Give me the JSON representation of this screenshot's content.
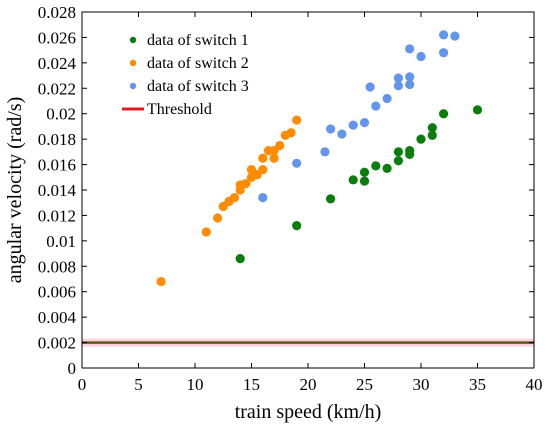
{
  "chart_data": {
    "type": "scatter",
    "xlabel": "train speed (km/h)",
    "ylabel": "angular velocity (rad/s)",
    "xlim": [
      0,
      40
    ],
    "ylim": [
      0,
      0.028
    ],
    "xticks": [
      0,
      5,
      10,
      15,
      20,
      25,
      30,
      35,
      40
    ],
    "yticks": [
      0,
      0.002,
      0.004,
      0.006,
      0.008,
      0.01,
      0.012,
      0.014,
      0.016,
      0.018,
      0.02,
      0.022,
      0.024,
      0.026,
      0.028
    ],
    "xtick_labels": [
      "0",
      "5",
      "10",
      "15",
      "20",
      "25",
      "30",
      "35",
      "40"
    ],
    "ytick_labels": [
      "0",
      "0.002",
      "0.004",
      "0.006",
      "0.008",
      "0.01",
      "0.012",
      "0.014",
      "0.016",
      "0.018",
      "0.02",
      "0.022",
      "0.024",
      "0.026",
      "0.028"
    ],
    "grid": false,
    "legend_position": "top-left",
    "series": [
      {
        "name": "data of switch 1",
        "color": "#0a7d0a",
        "points": [
          [
            14,
            0.0086
          ],
          [
            19,
            0.0112
          ],
          [
            22,
            0.0133
          ],
          [
            24,
            0.0148
          ],
          [
            25,
            0.0147
          ],
          [
            25,
            0.0154
          ],
          [
            26,
            0.0159
          ],
          [
            27,
            0.0157
          ],
          [
            28,
            0.0163
          ],
          [
            28,
            0.017
          ],
          [
            29,
            0.0168
          ],
          [
            29,
            0.0171
          ],
          [
            30,
            0.018
          ],
          [
            31,
            0.0183
          ],
          [
            31,
            0.0189
          ],
          [
            32,
            0.02
          ],
          [
            35,
            0.0203
          ]
        ]
      },
      {
        "name": "data of switch 2",
        "color": "#ff8c00",
        "points": [
          [
            7,
            0.0068
          ],
          [
            11,
            0.0107
          ],
          [
            12,
            0.0118
          ],
          [
            12.5,
            0.0127
          ],
          [
            13,
            0.0131
          ],
          [
            13.5,
            0.0134
          ],
          [
            14,
            0.014
          ],
          [
            14,
            0.0144
          ],
          [
            14.5,
            0.0145
          ],
          [
            15,
            0.015
          ],
          [
            15,
            0.0156
          ],
          [
            15.5,
            0.0152
          ],
          [
            16,
            0.0156
          ],
          [
            16,
            0.0165
          ],
          [
            16.5,
            0.0171
          ],
          [
            17,
            0.0165
          ],
          [
            17,
            0.0171
          ],
          [
            17.5,
            0.0175
          ],
          [
            18,
            0.0183
          ],
          [
            18.5,
            0.0185
          ],
          [
            19,
            0.0195
          ]
        ]
      },
      {
        "name": "data of switch 3",
        "color": "#6495ed",
        "points": [
          [
            16,
            0.0134
          ],
          [
            19,
            0.0161
          ],
          [
            21.5,
            0.017
          ],
          [
            22,
            0.0188
          ],
          [
            23,
            0.0184
          ],
          [
            24,
            0.0191
          ],
          [
            25,
            0.0193
          ],
          [
            25.5,
            0.0221
          ],
          [
            26,
            0.0206
          ],
          [
            27,
            0.0212
          ],
          [
            28,
            0.0222
          ],
          [
            28,
            0.0228
          ],
          [
            29,
            0.0223
          ],
          [
            29,
            0.0229
          ],
          [
            29,
            0.0251
          ],
          [
            30,
            0.0245
          ],
          [
            32,
            0.0248
          ],
          [
            32,
            0.0262
          ],
          [
            33,
            0.0261
          ]
        ]
      }
    ],
    "threshold": {
      "name": "Threshold",
      "value": 0.002,
      "color": "#e31a1c"
    }
  }
}
